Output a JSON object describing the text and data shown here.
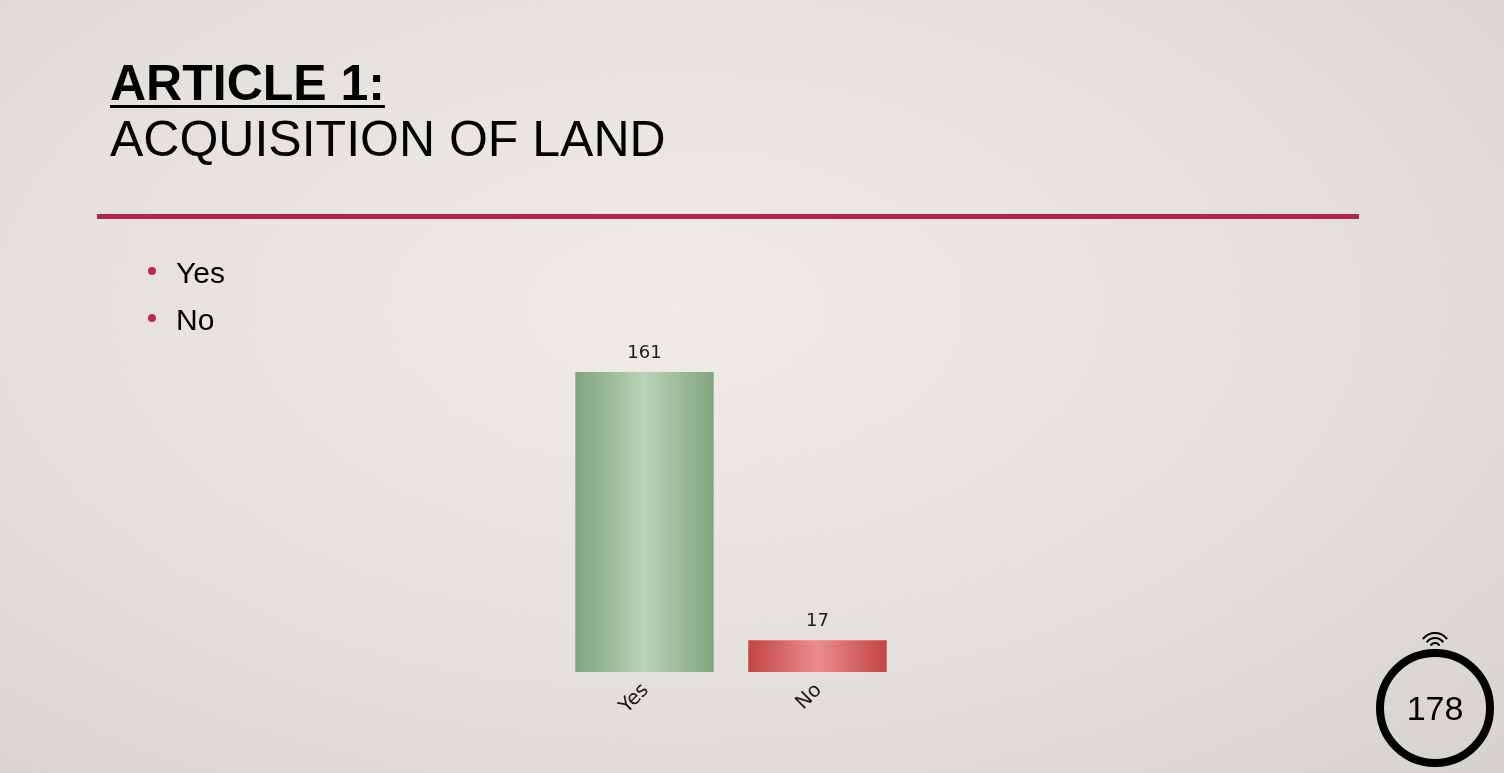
{
  "chart_data": {
    "type": "bar",
    "title": "ARTICLE 1:",
    "subtitle": "ACQUISITION OF LAND",
    "categories": [
      "Yes",
      "No"
    ],
    "values": [
      161,
      17
    ],
    "colors": [
      "#92bb8e",
      "#de4d50"
    ],
    "data_labels": true,
    "annotations": [
      "Yes",
      "No",
      "178"
    ]
  }
}
